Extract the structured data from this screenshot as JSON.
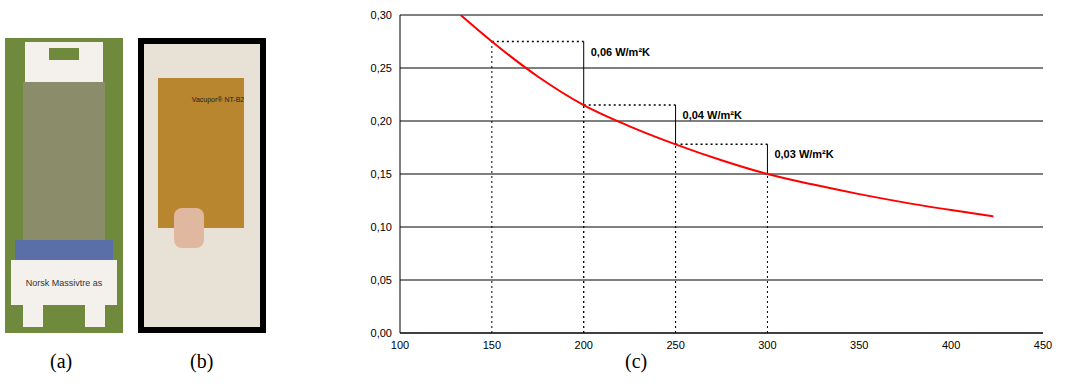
{
  "panels": [
    {
      "label": "(a)",
      "text": "Norsk Massivtre as"
    },
    {
      "label": "(b)",
      "text": "Vacupor® NT-B2"
    }
  ],
  "chart_data": {
    "type": "line",
    "label": "(c)",
    "x": [
      133,
      150,
      175,
      200,
      225,
      250,
      275,
      300,
      325,
      350,
      375,
      400,
      423
    ],
    "values": [
      0.3,
      0.275,
      0.242,
      0.215,
      0.195,
      0.178,
      0.163,
      0.15,
      0.14,
      0.131,
      0.123,
      0.116,
      0.11
    ],
    "color": "#ff0000",
    "xlim": [
      100,
      450
    ],
    "xticks": [
      100,
      150,
      200,
      250,
      300,
      350,
      400,
      450
    ],
    "ylim": [
      0,
      0.3
    ],
    "yticks": [
      {
        "value": 0,
        "label": "0,00"
      },
      {
        "value": 0.05,
        "label": "0,05"
      },
      {
        "value": 0.1,
        "label": "0,10"
      },
      {
        "value": 0.15,
        "label": "0,15"
      },
      {
        "value": 0.2,
        "label": "0,20"
      },
      {
        "value": 0.25,
        "label": "0,25"
      },
      {
        "value": 0.3,
        "label": "0,30"
      }
    ],
    "grid": true,
    "annotations": [
      {
        "text": "0,06 W/m²K",
        "x1": 150,
        "y1": 0.275,
        "x2": 200,
        "y2": 0.215
      },
      {
        "text": "0,04 W/m²K",
        "x1": 200,
        "y1": 0.215,
        "x2": 250,
        "y2": 0.178
      },
      {
        "text": "0,03 W/m²K",
        "x1": 250,
        "y1": 0.178,
        "x2": 300,
        "y2": 0.15
      }
    ]
  }
}
